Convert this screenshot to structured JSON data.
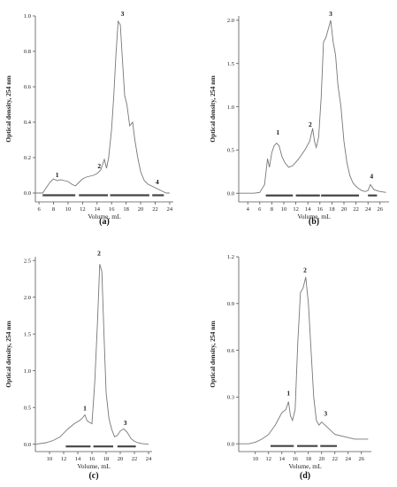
{
  "chart_data": [
    {
      "type": "line",
      "panel_label": "(a)",
      "xlabel": "Volume, mL",
      "ylabel": "Optical density, 254 nm",
      "xlim": [
        5.5,
        24.5
      ],
      "ylim": [
        -0.05,
        1.0
      ],
      "xticks": [
        "6",
        "8",
        "10",
        "12",
        "14",
        "16",
        "18",
        "20",
        "22",
        "24"
      ],
      "yticks": [
        "0.0",
        "0.2",
        "0.4",
        "0.6",
        "0.8",
        "1.0"
      ],
      "x": [
        5.5,
        6.5,
        7.0,
        7.5,
        8.0,
        8.5,
        9.0,
        9.5,
        10.0,
        10.5,
        11.0,
        11.5,
        12.0,
        12.5,
        13.0,
        13.5,
        14.0,
        14.5,
        15.0,
        15.3,
        15.6,
        16.0,
        16.3,
        16.6,
        16.9,
        17.2,
        17.5,
        17.8,
        18.1,
        18.5,
        18.9,
        19.2,
        19.6,
        20.0,
        20.5,
        21.0,
        21.5,
        22.0,
        22.5,
        23.0,
        23.5,
        24.0
      ],
      "y": [
        0.0,
        0.0,
        0.03,
        0.06,
        0.08,
        0.07,
        0.075,
        0.07,
        0.065,
        0.05,
        0.04,
        0.06,
        0.08,
        0.09,
        0.095,
        0.1,
        0.11,
        0.13,
        0.19,
        0.14,
        0.2,
        0.36,
        0.55,
        0.78,
        0.97,
        0.95,
        0.75,
        0.55,
        0.5,
        0.38,
        0.4,
        0.3,
        0.2,
        0.12,
        0.07,
        0.05,
        0.04,
        0.03,
        0.02,
        0.01,
        0.0,
        0.0
      ],
      "peaks": [
        {
          "label": "1",
          "x": 8.5,
          "y": 0.09
        },
        {
          "label": "2",
          "x": 14.3,
          "y": 0.14
        },
        {
          "label": "3",
          "x": 17.5,
          "y": 1.0
        },
        {
          "label": "4",
          "x": 22.3,
          "y": 0.05
        }
      ],
      "fractions": [
        [
          6.5,
          11
        ],
        [
          11.5,
          15.5
        ],
        [
          15.8,
          21.2
        ],
        [
          21.6,
          23.2
        ]
      ]
    },
    {
      "type": "line",
      "panel_label": "(b)",
      "xlabel": "Volume, mL",
      "ylabel": "Optical density, 254 nm",
      "xlim": [
        2.5,
        27.5
      ],
      "ylim": [
        -0.1,
        2.05
      ],
      "xticks": [
        "4",
        "6",
        "8",
        "10",
        "12",
        "14",
        "16",
        "18",
        "20",
        "22",
        "24",
        "26"
      ],
      "yticks": [
        "0.0",
        "0.5",
        "1.0",
        "1.5",
        "2.0"
      ],
      "x": [
        2.5,
        5.0,
        6.0,
        6.8,
        7.3,
        7.6,
        8.0,
        8.4,
        8.8,
        9.2,
        9.7,
        10.2,
        10.8,
        11.5,
        12.5,
        13.5,
        14.3,
        14.8,
        15.1,
        15.4,
        15.8,
        16.2,
        16.6,
        17.0,
        17.4,
        17.8,
        18.2,
        18.6,
        19.0,
        19.5,
        20.0,
        20.5,
        21.0,
        21.5,
        22.0,
        22.5,
        23.0,
        23.5,
        24.0,
        24.4,
        25.0,
        26.0,
        27.0
      ],
      "y": [
        0.0,
        0.0,
        0.01,
        0.1,
        0.4,
        0.3,
        0.47,
        0.55,
        0.58,
        0.55,
        0.42,
        0.35,
        0.3,
        0.32,
        0.4,
        0.5,
        0.6,
        0.75,
        0.6,
        0.53,
        0.65,
        1.1,
        1.75,
        1.8,
        1.9,
        2.0,
        1.75,
        1.6,
        1.25,
        1.0,
        0.6,
        0.35,
        0.2,
        0.12,
        0.08,
        0.05,
        0.03,
        0.02,
        0.03,
        0.1,
        0.04,
        0.02,
        0.01
      ],
      "peaks": [
        {
          "label": "1",
          "x": 9.0,
          "y": 0.68
        },
        {
          "label": "2",
          "x": 14.4,
          "y": 0.77
        },
        {
          "label": "3",
          "x": 17.8,
          "y": 2.05
        },
        {
          "label": "4",
          "x": 24.6,
          "y": 0.17
        }
      ],
      "fractions": [
        [
          7.0,
          11.5
        ],
        [
          12.0,
          16.0
        ],
        [
          16.2,
          22.5
        ],
        [
          24.0,
          25.5
        ]
      ]
    },
    {
      "type": "line",
      "panel_label": "(c)",
      "xlabel": "Volume, mL",
      "ylabel": "Optical density, 254 nm",
      "xlim": [
        8.0,
        24.5
      ],
      "ylim": [
        -0.1,
        2.55
      ],
      "xticks": [
        "10",
        "12",
        "14",
        "16",
        "18",
        "20",
        "22",
        "24"
      ],
      "yticks": [
        "0.0",
        "0.5",
        "1.0",
        "1.5",
        "2.0",
        "2.5"
      ],
      "x": [
        8.0,
        9.5,
        10.5,
        11.5,
        12.5,
        13.5,
        14.2,
        14.6,
        15.0,
        15.3,
        15.6,
        16.0,
        16.4,
        16.8,
        17.1,
        17.4,
        17.7,
        18.0,
        18.4,
        18.8,
        19.2,
        19.6,
        20.0,
        20.5,
        21.0,
        21.5,
        22.0,
        22.5,
        23.0,
        24.0
      ],
      "y": [
        0.0,
        0.02,
        0.05,
        0.1,
        0.2,
        0.28,
        0.32,
        0.35,
        0.4,
        0.32,
        0.3,
        0.28,
        0.85,
        1.7,
        2.45,
        2.35,
        1.5,
        0.7,
        0.35,
        0.2,
        0.1,
        0.12,
        0.18,
        0.21,
        0.16,
        0.08,
        0.04,
        0.02,
        0.01,
        0.0
      ],
      "peaks": [
        {
          "label": "1",
          "x": 15.0,
          "y": 0.46
        },
        {
          "label": "2",
          "x": 17.0,
          "y": 2.57
        },
        {
          "label": "3",
          "x": 20.7,
          "y": 0.26
        }
      ],
      "fractions": [
        [
          12.3,
          15.8
        ],
        [
          16.2,
          19.0
        ],
        [
          19.6,
          22.2
        ]
      ]
    },
    {
      "type": "line",
      "panel_label": "(d)",
      "xlabel": "Volume, mL",
      "ylabel": "Optical density, 254 nm",
      "xlim": [
        7.5,
        27.5
      ],
      "ylim": [
        -0.05,
        1.2
      ],
      "xticks": [
        "10",
        "12",
        "14",
        "16",
        "18",
        "20",
        "22",
        "24",
        "26"
      ],
      "yticks": [
        "0.0",
        "0.3",
        "0.6",
        "0.9",
        "1.2"
      ],
      "x": [
        7.5,
        9.0,
        10.0,
        11.0,
        12.0,
        13.0,
        14.0,
        14.6,
        15.0,
        15.3,
        15.6,
        16.0,
        16.4,
        16.8,
        17.2,
        17.6,
        18.0,
        18.4,
        18.8,
        19.2,
        19.6,
        20.0,
        20.5,
        21.0,
        21.5,
        22.0,
        23.0,
        24.0,
        25.0,
        26.0,
        27.0
      ],
      "y": [
        0.0,
        0.0,
        0.01,
        0.03,
        0.06,
        0.12,
        0.2,
        0.22,
        0.27,
        0.18,
        0.15,
        0.22,
        0.65,
        0.97,
        1.0,
        1.07,
        0.9,
        0.6,
        0.3,
        0.15,
        0.12,
        0.14,
        0.12,
        0.1,
        0.08,
        0.06,
        0.05,
        0.04,
        0.03,
        0.03,
        0.03
      ],
      "peaks": [
        {
          "label": "1",
          "x": 15.0,
          "y": 0.31
        },
        {
          "label": "2",
          "x": 17.5,
          "y": 1.1
        },
        {
          "label": "3",
          "x": 20.6,
          "y": 0.18
        }
      ],
      "fractions": [
        [
          12.3,
          15.8
        ],
        [
          16.3,
          19.4
        ],
        [
          19.8,
          22.3
        ]
      ]
    }
  ]
}
